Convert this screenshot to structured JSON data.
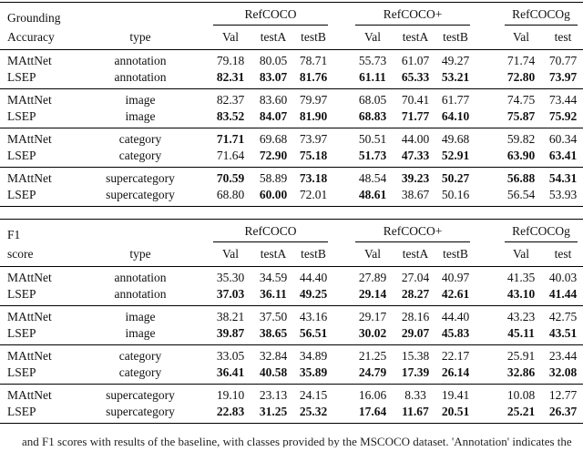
{
  "page": {
    "background": "#ffffff",
    "text_color": "#111111",
    "rule_color": "#000000"
  },
  "caption": {
    "text": "and F1 scores with results of the baseline, with classes provided by the MSCOCO dataset. 'Annotation' indicates the"
  },
  "tables": [
    {
      "title_line1": "Grounding",
      "title_line2": "Accuracy",
      "type_header": "type",
      "groups": [
        {
          "label": "RefCOCO",
          "subcols": [
            "Val",
            "testA",
            "testB"
          ]
        },
        {
          "label": "RefCOCO+",
          "subcols": [
            "Val",
            "testA",
            "testB"
          ]
        },
        {
          "label": "RefCOCOg",
          "subcols": [
            "Val",
            "test"
          ]
        }
      ],
      "row_groups": [
        {
          "type": "annotation",
          "rows": [
            {
              "method": "MAttNet",
              "values": [
                "79.18",
                "80.05",
                "78.71",
                "55.73",
                "61.07",
                "49.27",
                "71.74",
                "70.77"
              ],
              "bold": [
                false,
                false,
                false,
                false,
                false,
                false,
                false,
                false
              ]
            },
            {
              "method": "LSEP",
              "values": [
                "82.31",
                "83.07",
                "81.76",
                "61.11",
                "65.33",
                "53.21",
                "72.80",
                "73.97"
              ],
              "bold": [
                true,
                true,
                true,
                true,
                true,
                true,
                true,
                true
              ]
            }
          ]
        },
        {
          "type": "image",
          "rows": [
            {
              "method": "MAttNet",
              "values": [
                "82.37",
                "83.60",
                "79.97",
                "68.05",
                "70.41",
                "61.77",
                "74.75",
                "73.44"
              ],
              "bold": [
                false,
                false,
                false,
                false,
                false,
                false,
                false,
                false
              ]
            },
            {
              "method": "LSEP",
              "values": [
                "83.52",
                "84.07",
                "81.90",
                "68.83",
                "71.77",
                "64.10",
                "75.87",
                "75.92"
              ],
              "bold": [
                true,
                true,
                true,
                true,
                true,
                true,
                true,
                true
              ]
            }
          ]
        },
        {
          "type": "category",
          "rows": [
            {
              "method": "MAttNet",
              "values": [
                "71.71",
                "69.68",
                "73.97",
                "50.51",
                "44.00",
                "49.68",
                "59.82",
                "60.34"
              ],
              "bold": [
                true,
                false,
                false,
                false,
                false,
                false,
                false,
                false
              ]
            },
            {
              "method": "LSEP",
              "values": [
                "71.64",
                "72.90",
                "75.18",
                "51.73",
                "47.33",
                "52.91",
                "63.90",
                "63.41"
              ],
              "bold": [
                false,
                true,
                true,
                true,
                true,
                true,
                true,
                true
              ]
            }
          ]
        },
        {
          "type": "supercategory",
          "rows": [
            {
              "method": "MAttNet",
              "values": [
                "70.59",
                "58.89",
                "73.18",
                "48.54",
                "39.23",
                "50.27",
                "56.88",
                "54.31"
              ],
              "bold": [
                true,
                false,
                true,
                false,
                true,
                true,
                true,
                true
              ]
            },
            {
              "method": "LSEP",
              "values": [
                "68.80",
                "60.00",
                "72.01",
                "48.61",
                "38.67",
                "50.16",
                "56.54",
                "53.93"
              ],
              "bold": [
                false,
                true,
                false,
                true,
                false,
                false,
                false,
                false
              ]
            }
          ]
        }
      ]
    },
    {
      "title_line1": "F1",
      "title_line2": "score",
      "type_header": "type",
      "groups": [
        {
          "label": "RefCOCO",
          "subcols": [
            "Val",
            "testA",
            "testB"
          ]
        },
        {
          "label": "RefCOCO+",
          "subcols": [
            "Val",
            "testA",
            "testB"
          ]
        },
        {
          "label": "RefCOCOg",
          "subcols": [
            "Val",
            "test"
          ]
        }
      ],
      "row_groups": [
        {
          "type": "annotation",
          "rows": [
            {
              "method": "MAttNet",
              "values": [
                "35.30",
                "34.59",
                "44.40",
                "27.89",
                "27.04",
                "40.97",
                "41.35",
                "40.03"
              ],
              "bold": [
                false,
                false,
                false,
                false,
                false,
                false,
                false,
                false
              ]
            },
            {
              "method": "LSEP",
              "values": [
                "37.03",
                "36.11",
                "49.25",
                "29.14",
                "28.27",
                "42.61",
                "43.10",
                "41.44"
              ],
              "bold": [
                true,
                true,
                true,
                true,
                true,
                true,
                true,
                true
              ]
            }
          ]
        },
        {
          "type": "image",
          "rows": [
            {
              "method": "MAttNet",
              "values": [
                "38.21",
                "37.50",
                "43.16",
                "29.17",
                "28.16",
                "44.40",
                "43.23",
                "42.75"
              ],
              "bold": [
                false,
                false,
                false,
                false,
                false,
                false,
                false,
                false
              ]
            },
            {
              "method": "LSEP",
              "values": [
                "39.87",
                "38.65",
                "56.51",
                "30.02",
                "29.07",
                "45.83",
                "45.11",
                "43.51"
              ],
              "bold": [
                true,
                true,
                true,
                true,
                true,
                true,
                true,
                true
              ]
            }
          ]
        },
        {
          "type": "category",
          "rows": [
            {
              "method": "MAttNet",
              "values": [
                "33.05",
                "32.84",
                "34.89",
                "21.25",
                "15.38",
                "22.17",
                "25.91",
                "23.44"
              ],
              "bold": [
                false,
                false,
                false,
                false,
                false,
                false,
                false,
                false
              ]
            },
            {
              "method": "LSEP",
              "values": [
                "36.41",
                "40.58",
                "35.89",
                "24.79",
                "17.39",
                "26.14",
                "32.86",
                "32.08"
              ],
              "bold": [
                true,
                true,
                true,
                true,
                true,
                true,
                true,
                true
              ]
            }
          ]
        },
        {
          "type": "supercategory",
          "rows": [
            {
              "method": "MAttNet",
              "values": [
                "19.10",
                "23.13",
                "24.15",
                "16.06",
                "8.33",
                "19.41",
                "10.08",
                "12.77"
              ],
              "bold": [
                false,
                false,
                false,
                false,
                false,
                false,
                false,
                false
              ]
            },
            {
              "method": "LSEP",
              "values": [
                "22.83",
                "31.25",
                "25.32",
                "17.64",
                "11.67",
                "20.51",
                "25.21",
                "26.37"
              ],
              "bold": [
                true,
                true,
                true,
                true,
                true,
                true,
                true,
                true
              ]
            }
          ]
        }
      ]
    }
  ]
}
